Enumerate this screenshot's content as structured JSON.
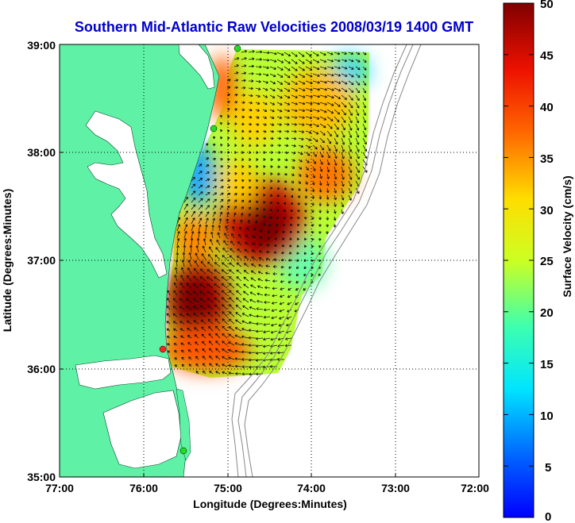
{
  "title": "Southern Mid-Atlantic Raw Velocities 2008/03/19 1400 GMT",
  "x_axis": {
    "label": "Longitude (Degrees:Minutes)",
    "ticks": [
      "77:00",
      "76:00",
      "75:00",
      "74:00",
      "73:00",
      "72:00"
    ]
  },
  "y_axis": {
    "label": "Latitude (Degrees:Minutes)",
    "ticks": [
      "39:00",
      "38:00",
      "37:00",
      "36:00",
      "35:00"
    ]
  },
  "colorbar": {
    "label": "Surface Velocity (cm/s)",
    "ticks": [
      "50",
      "45",
      "40",
      "35",
      "30",
      "25",
      "20",
      "15",
      "10",
      "5",
      "0"
    ],
    "range": [
      0,
      50
    ],
    "colormap": "jet"
  },
  "map": {
    "lon_range": [
      -77,
      -72
    ],
    "lat_range": [
      35,
      39
    ],
    "grid": true,
    "land_color": "#5ff2a6",
    "ocean_color": "#ffffff",
    "stations": [
      {
        "color": "#22dd22"
      },
      {
        "color": "#22dd22"
      },
      {
        "color": "#ff2222"
      },
      {
        "color": "#22dd22"
      }
    ]
  }
}
